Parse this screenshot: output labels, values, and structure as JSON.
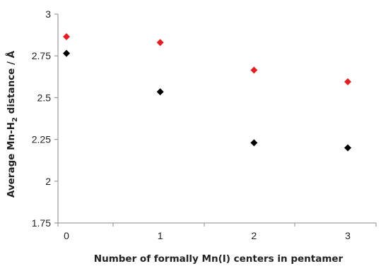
{
  "chart_data": {
    "type": "scatter",
    "title": "",
    "xlabel": "Number of formally Mn(I) centers in pentamer",
    "ylabel": {
      "before": "Average Mn-H",
      "subscript": "2",
      "after": " distance / Å"
    },
    "xlim": [
      0,
      3
    ],
    "ylim": [
      1.75,
      3
    ],
    "xticks": [
      "0",
      "1",
      "2",
      "3"
    ],
    "yticks": [
      "1.75",
      "2",
      "2.25",
      "2.5",
      "2.75",
      "3"
    ],
    "grid": false,
    "legend": "none",
    "marker": "diamond",
    "series": [
      {
        "color": "#e02020",
        "x": [
          0,
          1,
          2,
          3
        ],
        "y": [
          2.865,
          2.83,
          2.665,
          2.595
        ]
      },
      {
        "color": "#000000",
        "x": [
          0,
          1,
          2,
          3
        ],
        "y": [
          2.765,
          2.535,
          2.23,
          2.2
        ]
      }
    ]
  }
}
